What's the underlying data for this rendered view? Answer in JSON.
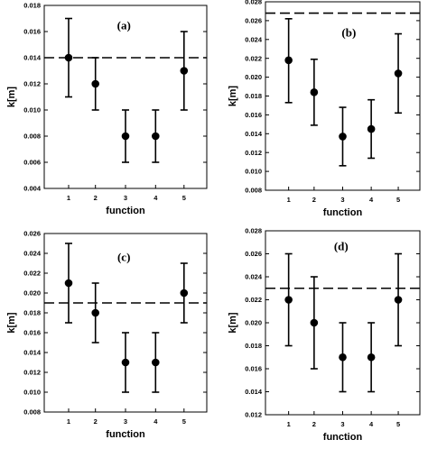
{
  "chart_data": [
    {
      "type": "scatter",
      "panel_label": "(a)",
      "xlabel": "function",
      "ylabel": "k[m]",
      "categories": [
        "1",
        "2",
        "3",
        "4",
        "5"
      ],
      "ylim": [
        0.004,
        0.018
      ],
      "yticks": [
        "0.004",
        "0.006",
        "0.008",
        "0.010",
        "0.012",
        "0.014",
        "0.016",
        "0.018"
      ],
      "points": [
        {
          "x": 1,
          "y": 0.014,
          "err_low": 0.011,
          "err_high": 0.017
        },
        {
          "x": 2,
          "y": 0.012,
          "err_low": 0.01,
          "err_high": 0.014
        },
        {
          "x": 3,
          "y": 0.008,
          "err_low": 0.006,
          "err_high": 0.01
        },
        {
          "x": 4,
          "y": 0.008,
          "err_low": 0.006,
          "err_high": 0.01
        },
        {
          "x": 5,
          "y": 0.013,
          "err_low": 0.01,
          "err_high": 0.016
        }
      ],
      "reference_line": 0.014
    },
    {
      "type": "scatter",
      "panel_label": "(b)",
      "xlabel": "function",
      "ylabel": "k[m]",
      "categories": [
        "1",
        "2",
        "3",
        "4",
        "5"
      ],
      "ylim": [
        0.008,
        0.028
      ],
      "yticks": [
        "0.008",
        "0.010",
        "0.012",
        "0.014",
        "0.016",
        "0.018",
        "0.020",
        "0.022",
        "0.024",
        "0.026",
        "0.028"
      ],
      "points": [
        {
          "x": 1,
          "y": 0.0218,
          "err_low": 0.0173,
          "err_high": 0.0262
        },
        {
          "x": 2,
          "y": 0.0184,
          "err_low": 0.0149,
          "err_high": 0.0219
        },
        {
          "x": 3,
          "y": 0.0137,
          "err_low": 0.0106,
          "err_high": 0.0168
        },
        {
          "x": 4,
          "y": 0.0145,
          "err_low": 0.0114,
          "err_high": 0.0176
        },
        {
          "x": 5,
          "y": 0.0204,
          "err_low": 0.0162,
          "err_high": 0.0246
        }
      ],
      "reference_line": 0.0268
    },
    {
      "type": "scatter",
      "panel_label": "(c)",
      "xlabel": "function",
      "ylabel": "k[m]",
      "categories": [
        "1",
        "2",
        "3",
        "4",
        "5"
      ],
      "ylim": [
        0.008,
        0.026
      ],
      "yticks": [
        "0.008",
        "0.010",
        "0.012",
        "0.014",
        "0.016",
        "0.018",
        "0.020",
        "0.022",
        "0.024",
        "0.026"
      ],
      "points": [
        {
          "x": 1,
          "y": 0.021,
          "err_low": 0.017,
          "err_high": 0.025
        },
        {
          "x": 2,
          "y": 0.018,
          "err_low": 0.015,
          "err_high": 0.021
        },
        {
          "x": 3,
          "y": 0.013,
          "err_low": 0.01,
          "err_high": 0.016
        },
        {
          "x": 4,
          "y": 0.013,
          "err_low": 0.01,
          "err_high": 0.016
        },
        {
          "x": 5,
          "y": 0.02,
          "err_low": 0.017,
          "err_high": 0.023
        }
      ],
      "reference_line": 0.019
    },
    {
      "type": "scatter",
      "panel_label": "(d)",
      "xlabel": "function",
      "ylabel": "k[m]",
      "categories": [
        "1",
        "2",
        "3",
        "4",
        "5"
      ],
      "ylim": [
        0.012,
        0.028
      ],
      "yticks": [
        "0.012",
        "0.014",
        "0.016",
        "0.018",
        "0.020",
        "0.022",
        "0.024",
        "0.026",
        "0.028"
      ],
      "points": [
        {
          "x": 1,
          "y": 0.022,
          "err_low": 0.018,
          "err_high": 0.026
        },
        {
          "x": 2,
          "y": 0.02,
          "err_low": 0.016,
          "err_high": 0.024
        },
        {
          "x": 3,
          "y": 0.017,
          "err_low": 0.014,
          "err_high": 0.02
        },
        {
          "x": 4,
          "y": 0.017,
          "err_low": 0.014,
          "err_high": 0.02
        },
        {
          "x": 5,
          "y": 0.022,
          "err_low": 0.018,
          "err_high": 0.026
        }
      ],
      "reference_line": 0.023
    }
  ]
}
